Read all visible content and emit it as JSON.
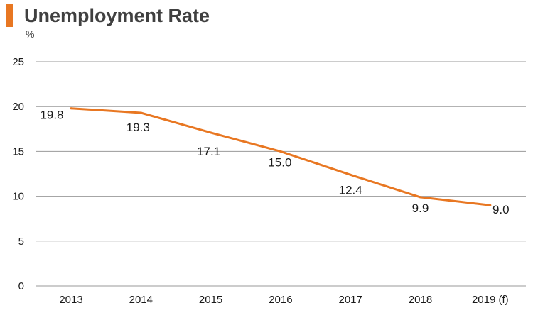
{
  "title": "Unemployment Rate",
  "colors": {
    "accent": "#E87722",
    "line": "#E87722",
    "text": "#404040",
    "axis_text": "#1a1a1a",
    "grid": "#9a9a9a"
  },
  "chart_data": {
    "type": "line",
    "title": "Unemployment Rate",
    "ylabel": "%",
    "xlabel": "",
    "categories": [
      "2013",
      "2014",
      "2015",
      "2016",
      "2017",
      "2018",
      "2019 (f)"
    ],
    "series": [
      {
        "values": [
          19.8,
          19.3,
          17.1,
          15.0,
          12.4,
          9.9,
          9.0
        ]
      }
    ],
    "data_labels": [
      "19.8",
      "19.3",
      "17.1",
      "15.0",
      "12.4",
      "9.9",
      "9.0"
    ],
    "ylim": [
      0,
      25
    ],
    "yticks": [
      0,
      5,
      10,
      15,
      20,
      25
    ],
    "grid": true,
    "legend": "none"
  }
}
